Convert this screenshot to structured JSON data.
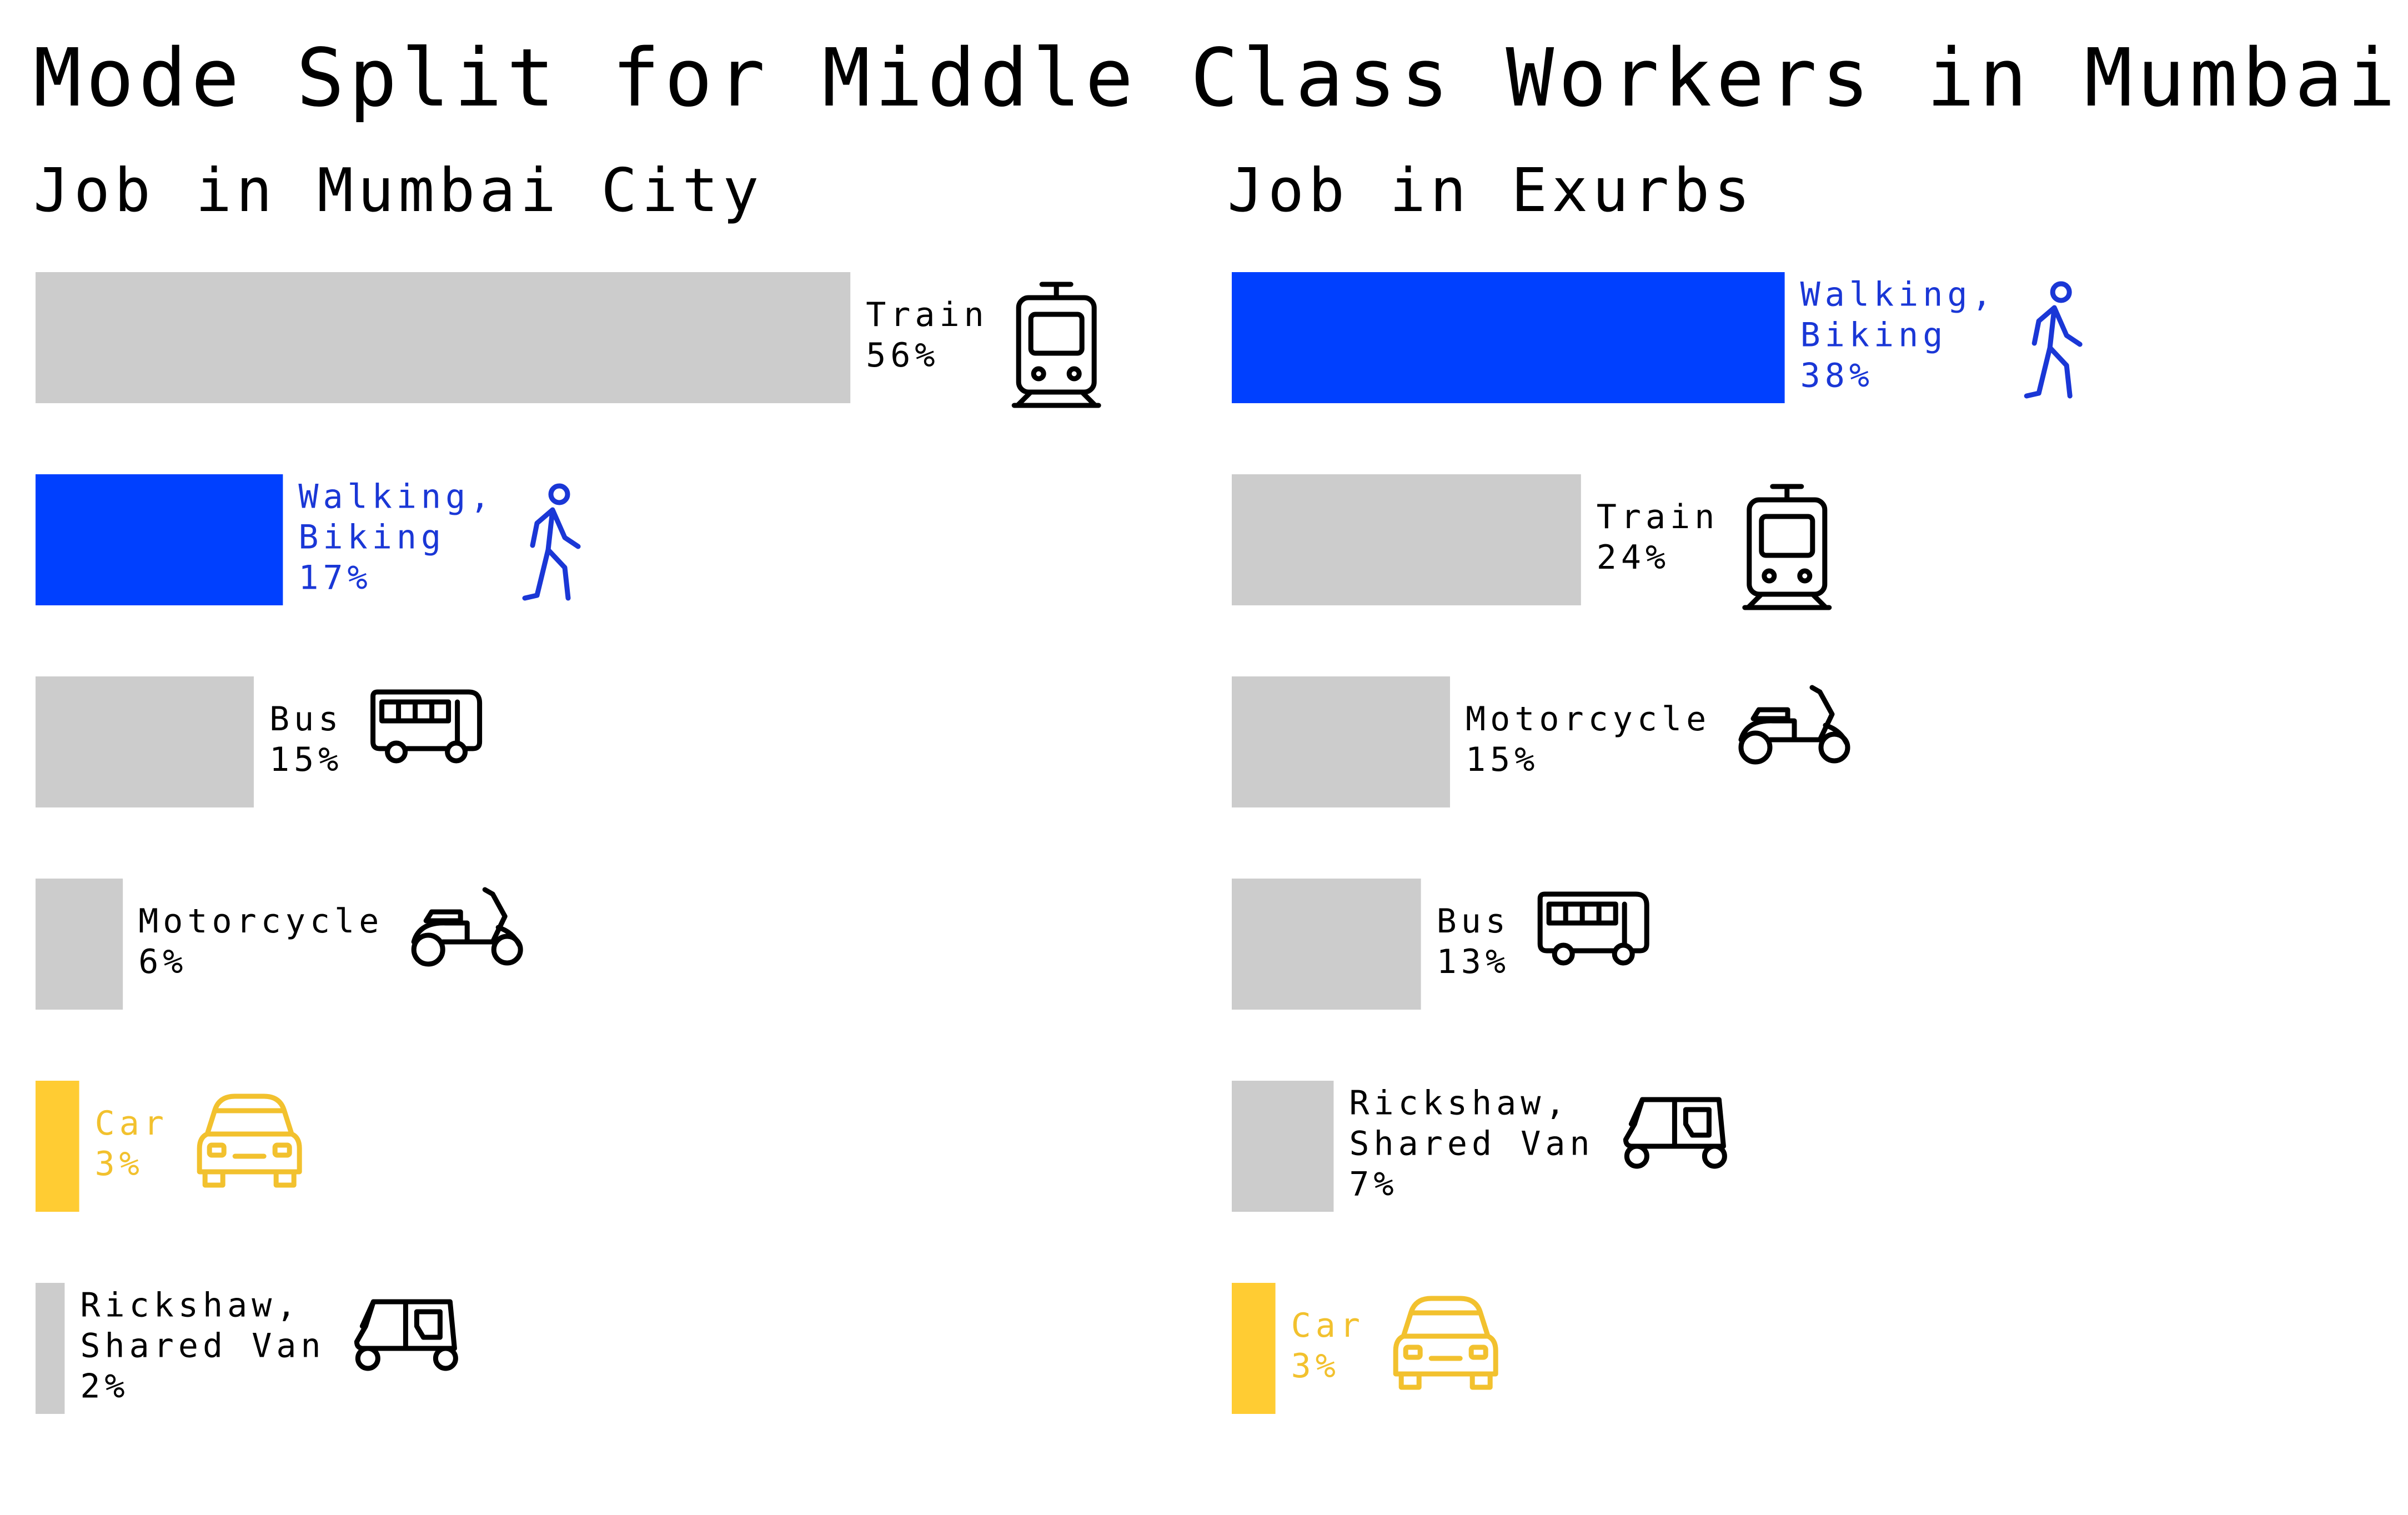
{
  "title": "Mode Split for Middle Class Workers in Mumbai",
  "colors": {
    "default": "#cccccc",
    "walking": "#0040ff",
    "car": "#ffcc33",
    "default_text": "#000000",
    "walking_text": "#1a37d6",
    "car_text": "#f2c12e"
  },
  "chart_data": [
    {
      "type": "bar",
      "orientation": "horizontal",
      "title": "Job in Mumbai City",
      "xlim": [
        0,
        56
      ],
      "grid": false,
      "bars": [
        {
          "label": "Train",
          "value": 56,
          "value_label": "56%",
          "color": "default",
          "icon": "train-icon"
        },
        {
          "label": "Walking, Biking",
          "label_lines": [
            "Walking,",
            "Biking"
          ],
          "value": 17,
          "value_label": "17%",
          "color": "walking",
          "icon": "walking-icon"
        },
        {
          "label": "Bus",
          "value": 15,
          "value_label": "15%",
          "color": "default",
          "icon": "bus-icon"
        },
        {
          "label": "Motorcycle",
          "value": 6,
          "value_label": "6%",
          "color": "default",
          "icon": "scooter-icon"
        },
        {
          "label": "Car",
          "value": 3,
          "value_label": "3%",
          "color": "car",
          "icon": "car-icon"
        },
        {
          "label": "Rickshaw, Shared Van",
          "label_lines": [
            "Rickshaw,",
            "Shared Van"
          ],
          "value": 2,
          "value_label": "2%",
          "color": "default",
          "icon": "rickshaw-icon"
        }
      ]
    },
    {
      "type": "bar",
      "orientation": "horizontal",
      "title": "Job in Exurbs",
      "xlim": [
        0,
        56
      ],
      "grid": false,
      "bars": [
        {
          "label": "Walking, Biking",
          "label_lines": [
            "Walking,",
            "Biking"
          ],
          "value": 38,
          "value_label": "38%",
          "color": "walking",
          "icon": "walking-icon"
        },
        {
          "label": "Train",
          "value": 24,
          "value_label": "24%",
          "color": "default",
          "icon": "train-icon"
        },
        {
          "label": "Motorcycle",
          "value": 15,
          "value_label": "15%",
          "color": "default",
          "icon": "scooter-icon"
        },
        {
          "label": "Bus",
          "value": 13,
          "value_label": "13%",
          "color": "default",
          "icon": "bus-icon"
        },
        {
          "label": "Rickshaw, Shared Van",
          "label_lines": [
            "Rickshaw,",
            "Shared Van"
          ],
          "value": 7,
          "value_label": "7%",
          "color": "default",
          "icon": "rickshaw-icon"
        },
        {
          "label": "Car",
          "value": 3,
          "value_label": "3%",
          "color": "car",
          "icon": "car-icon"
        }
      ]
    }
  ]
}
